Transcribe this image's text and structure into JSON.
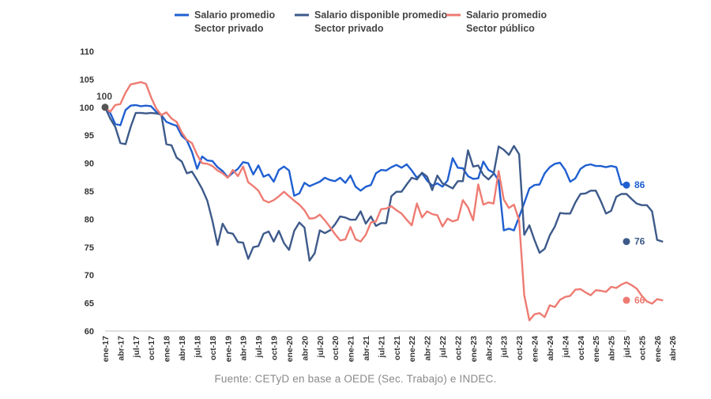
{
  "chart_data": {
    "type": "line",
    "ylim": [
      60,
      110
    ],
    "yticks": [
      60,
      65,
      70,
      75,
      80,
      85,
      90,
      95,
      100,
      105,
      110
    ],
    "x_tick_labels": [
      "ene-17",
      "abr-17",
      "jul-17",
      "oct-17",
      "ene-18",
      "abr-18",
      "jul-18",
      "oct-18",
      "ene-19",
      "abr-19",
      "jul-19",
      "oct-19",
      "ene-20",
      "abr-20",
      "jul-20",
      "oct-20",
      "ene-21",
      "abr-21",
      "jul-21",
      "oct-21",
      "ene-22",
      "abr-22",
      "jul-22",
      "oct-22",
      "ene-23",
      "abr-23",
      "jul-23",
      "oct-23",
      "ene-24",
      "abr-24",
      "jul-24",
      "oct-24",
      "ene-25",
      "abr-25",
      "jul-25",
      "oct-25",
      "ene-26",
      "abr-26"
    ],
    "start_label": "100",
    "series": [
      {
        "name_line1": "Salario promedio",
        "name_line2": "Sector privado",
        "color": "#1f5fd1",
        "end_label": "86",
        "values": [
          100,
          99,
          97,
          96.8,
          99.5,
          100.3,
          100.4,
          100.2,
          100.3,
          100.2,
          99.2,
          98.6,
          97.4,
          97,
          96.7,
          94.9,
          94.1,
          92,
          89,
          91.2,
          90.5,
          90.4,
          89.3,
          88.6,
          87.5,
          88.3,
          89,
          90.2,
          90,
          88,
          89.6,
          87.6,
          88,
          86.7,
          88.8,
          89.4,
          88.7,
          84.2,
          84.6,
          86.5,
          85.9,
          86.3,
          86.7,
          87.4,
          87,
          86.8,
          87.4,
          86.5,
          87.8,
          85.8,
          85.1,
          85.8,
          86.1,
          88.2,
          88.8,
          88.7,
          89.3,
          89.7,
          89.2,
          89.8,
          88.7,
          87.4,
          88.2,
          86.9,
          86,
          86.4,
          85.8,
          86.9,
          90.9,
          89.2,
          89.1,
          87.7,
          87.2,
          87.3,
          90.3,
          88.8,
          88.3,
          86.9,
          78,
          78.3,
          78,
          80.4,
          82.9,
          85.5,
          86.1,
          86.2,
          88.2,
          89.3,
          89.9,
          90.1,
          88.8,
          86.7,
          87.3,
          89,
          89.6,
          89.8,
          89.5,
          89.5,
          89.3,
          89.5,
          89.3,
          86.2,
          86.1
        ]
      },
      {
        "name_line1": "Salario disponible promedio",
        "name_line2": "Sector privado",
        "color": "#3d5a8a",
        "end_label": "76",
        "values": [
          100,
          98,
          96.5,
          93.6,
          93.4,
          96.5,
          99,
          99,
          98.9,
          99,
          98.9,
          98.7,
          93.4,
          93.2,
          91,
          90.3,
          88.2,
          88.5,
          87,
          85.4,
          83.3,
          79.7,
          75.4,
          79.2,
          77.6,
          77.4,
          75.9,
          75.8,
          72.9,
          75,
          75.2,
          77.4,
          77.8,
          76,
          77.9,
          75.7,
          74.5,
          77.9,
          79.4,
          78.5,
          72.6,
          73.9,
          78,
          77.5,
          78,
          79.1,
          80.5,
          80.3,
          79.9,
          79.9,
          81.4,
          79.2,
          80.5,
          78.8,
          79.3,
          79.3,
          84.1,
          84.9,
          84.9,
          86.2,
          87.4,
          87.1,
          88.3,
          87.6,
          85.2,
          87.8,
          86.4,
          86,
          85.5,
          86.8,
          86.8,
          92.3,
          89.4,
          89.6,
          87.9,
          87.1,
          88.1,
          93,
          92.4,
          91.5,
          93.1,
          91.6,
          77.2,
          78.9,
          76.3,
          74,
          74.7,
          77.1,
          78.7,
          81.1,
          81,
          81,
          83,
          84.5,
          84.6,
          85.1,
          85.1,
          83.2,
          81,
          81.5,
          84,
          84.5,
          84.5,
          83.6,
          82.8,
          82.5,
          82.5,
          81.4,
          76.3,
          76
        ]
      },
      {
        "name_line1": "Salario promedio",
        "name_line2": "Sector público",
        "color": "#ee7b72",
        "end_label": "66",
        "values": [
          100,
          99.2,
          100.4,
          100.6,
          102.6,
          104.1,
          104.3,
          104.5,
          104.2,
          101.8,
          99.8,
          98.6,
          99.1,
          98,
          97.4,
          95.5,
          94.2,
          93.6,
          91.5,
          90,
          89.9,
          89.5,
          88.7,
          88.2,
          87.4,
          88.8,
          87.7,
          89.4,
          86.6,
          85.9,
          85.1,
          83.4,
          83,
          83.4,
          84.1,
          84.9,
          84.1,
          83.3,
          82.6,
          81.6,
          80.1,
          80.2,
          80.8,
          79.8,
          78.6,
          77.3,
          76.2,
          76.4,
          78.6,
          76.4,
          76,
          77.2,
          79.4,
          79.6,
          81.8,
          81.9,
          82.3,
          81.6,
          81,
          79.9,
          78.9,
          82.8,
          80.3,
          81.4,
          80.9,
          80.7,
          78.7,
          80.1,
          79.6,
          79.9,
          83.4,
          82.1,
          79.8,
          86.2,
          82.6,
          83,
          82.8,
          88.6,
          83.5,
          82,
          82.6,
          79.8,
          66.4,
          61.9,
          63,
          63.2,
          62.5,
          64.6,
          64.3,
          65.6,
          66.1,
          66.3,
          67.4,
          67.5,
          66.9,
          66.4,
          67.3,
          67.2,
          67,
          67.9,
          67.7,
          68.3,
          68.7,
          68.2,
          67.6,
          66.3,
          65.3,
          64.9,
          65.7,
          65.5
        ]
      }
    ]
  },
  "source": "Fuente: CETyD en base a OEDE (Sec. Trabajo) e INDEC."
}
